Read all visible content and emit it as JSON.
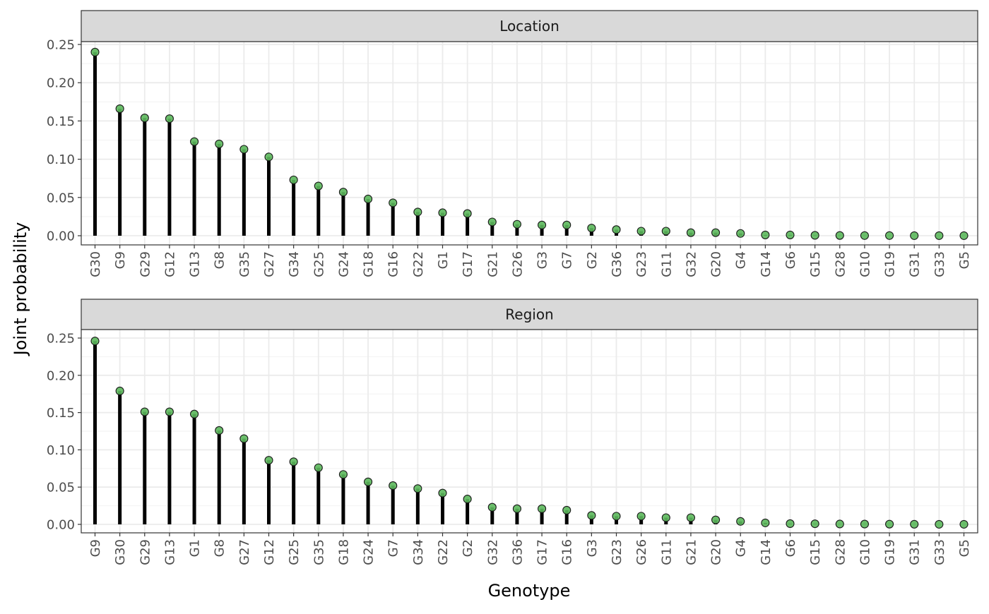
{
  "chart_data": {
    "type": "lollipop",
    "ylabel": "Joint probability",
    "xlabel": "Genotype",
    "ylim": [
      0,
      0.25
    ],
    "yticks": [
      "0.00",
      "0.05",
      "0.10",
      "0.15",
      "0.20",
      "0.25"
    ],
    "grid": true,
    "point_color": "#5cb85c",
    "stem_color": "#000000",
    "panels": [
      {
        "strip": "Location",
        "categories": [
          "G30",
          "G9",
          "G29",
          "G12",
          "G13",
          "G8",
          "G35",
          "G27",
          "G34",
          "G25",
          "G24",
          "G18",
          "G16",
          "G22",
          "G1",
          "G17",
          "G21",
          "G26",
          "G3",
          "G7",
          "G2",
          "G36",
          "G23",
          "G11",
          "G32",
          "G20",
          "G4",
          "G14",
          "G6",
          "G15",
          "G28",
          "G10",
          "G19",
          "G31",
          "G33",
          "G5"
        ],
        "values": [
          0.24,
          0.166,
          0.154,
          0.153,
          0.123,
          0.12,
          0.113,
          0.103,
          0.073,
          0.065,
          0.057,
          0.048,
          0.043,
          0.031,
          0.03,
          0.029,
          0.018,
          0.015,
          0.014,
          0.014,
          0.01,
          0.008,
          0.006,
          0.006,
          0.004,
          0.004,
          0.003,
          0.001,
          0.001,
          0.0005,
          0.0003,
          0.0002,
          0.0002,
          0.0001,
          0.0001,
          0.0001
        ]
      },
      {
        "strip": "Region",
        "categories": [
          "G9",
          "G30",
          "G29",
          "G13",
          "G1",
          "G8",
          "G27",
          "G12",
          "G25",
          "G35",
          "G18",
          "G24",
          "G7",
          "G34",
          "G22",
          "G2",
          "G32",
          "G36",
          "G17",
          "G16",
          "G3",
          "G23",
          "G26",
          "G11",
          "G21",
          "G20",
          "G4",
          "G14",
          "G6",
          "G15",
          "G28",
          "G10",
          "G19",
          "G31",
          "G33",
          "G5"
        ],
        "values": [
          0.246,
          0.179,
          0.151,
          0.151,
          0.148,
          0.126,
          0.115,
          0.086,
          0.084,
          0.076,
          0.067,
          0.057,
          0.052,
          0.048,
          0.042,
          0.034,
          0.023,
          0.021,
          0.021,
          0.019,
          0.012,
          0.011,
          0.011,
          0.009,
          0.009,
          0.006,
          0.004,
          0.002,
          0.001,
          0.0008,
          0.0005,
          0.0004,
          0.0003,
          0.0002,
          0.0001,
          0.0001
        ]
      }
    ]
  }
}
